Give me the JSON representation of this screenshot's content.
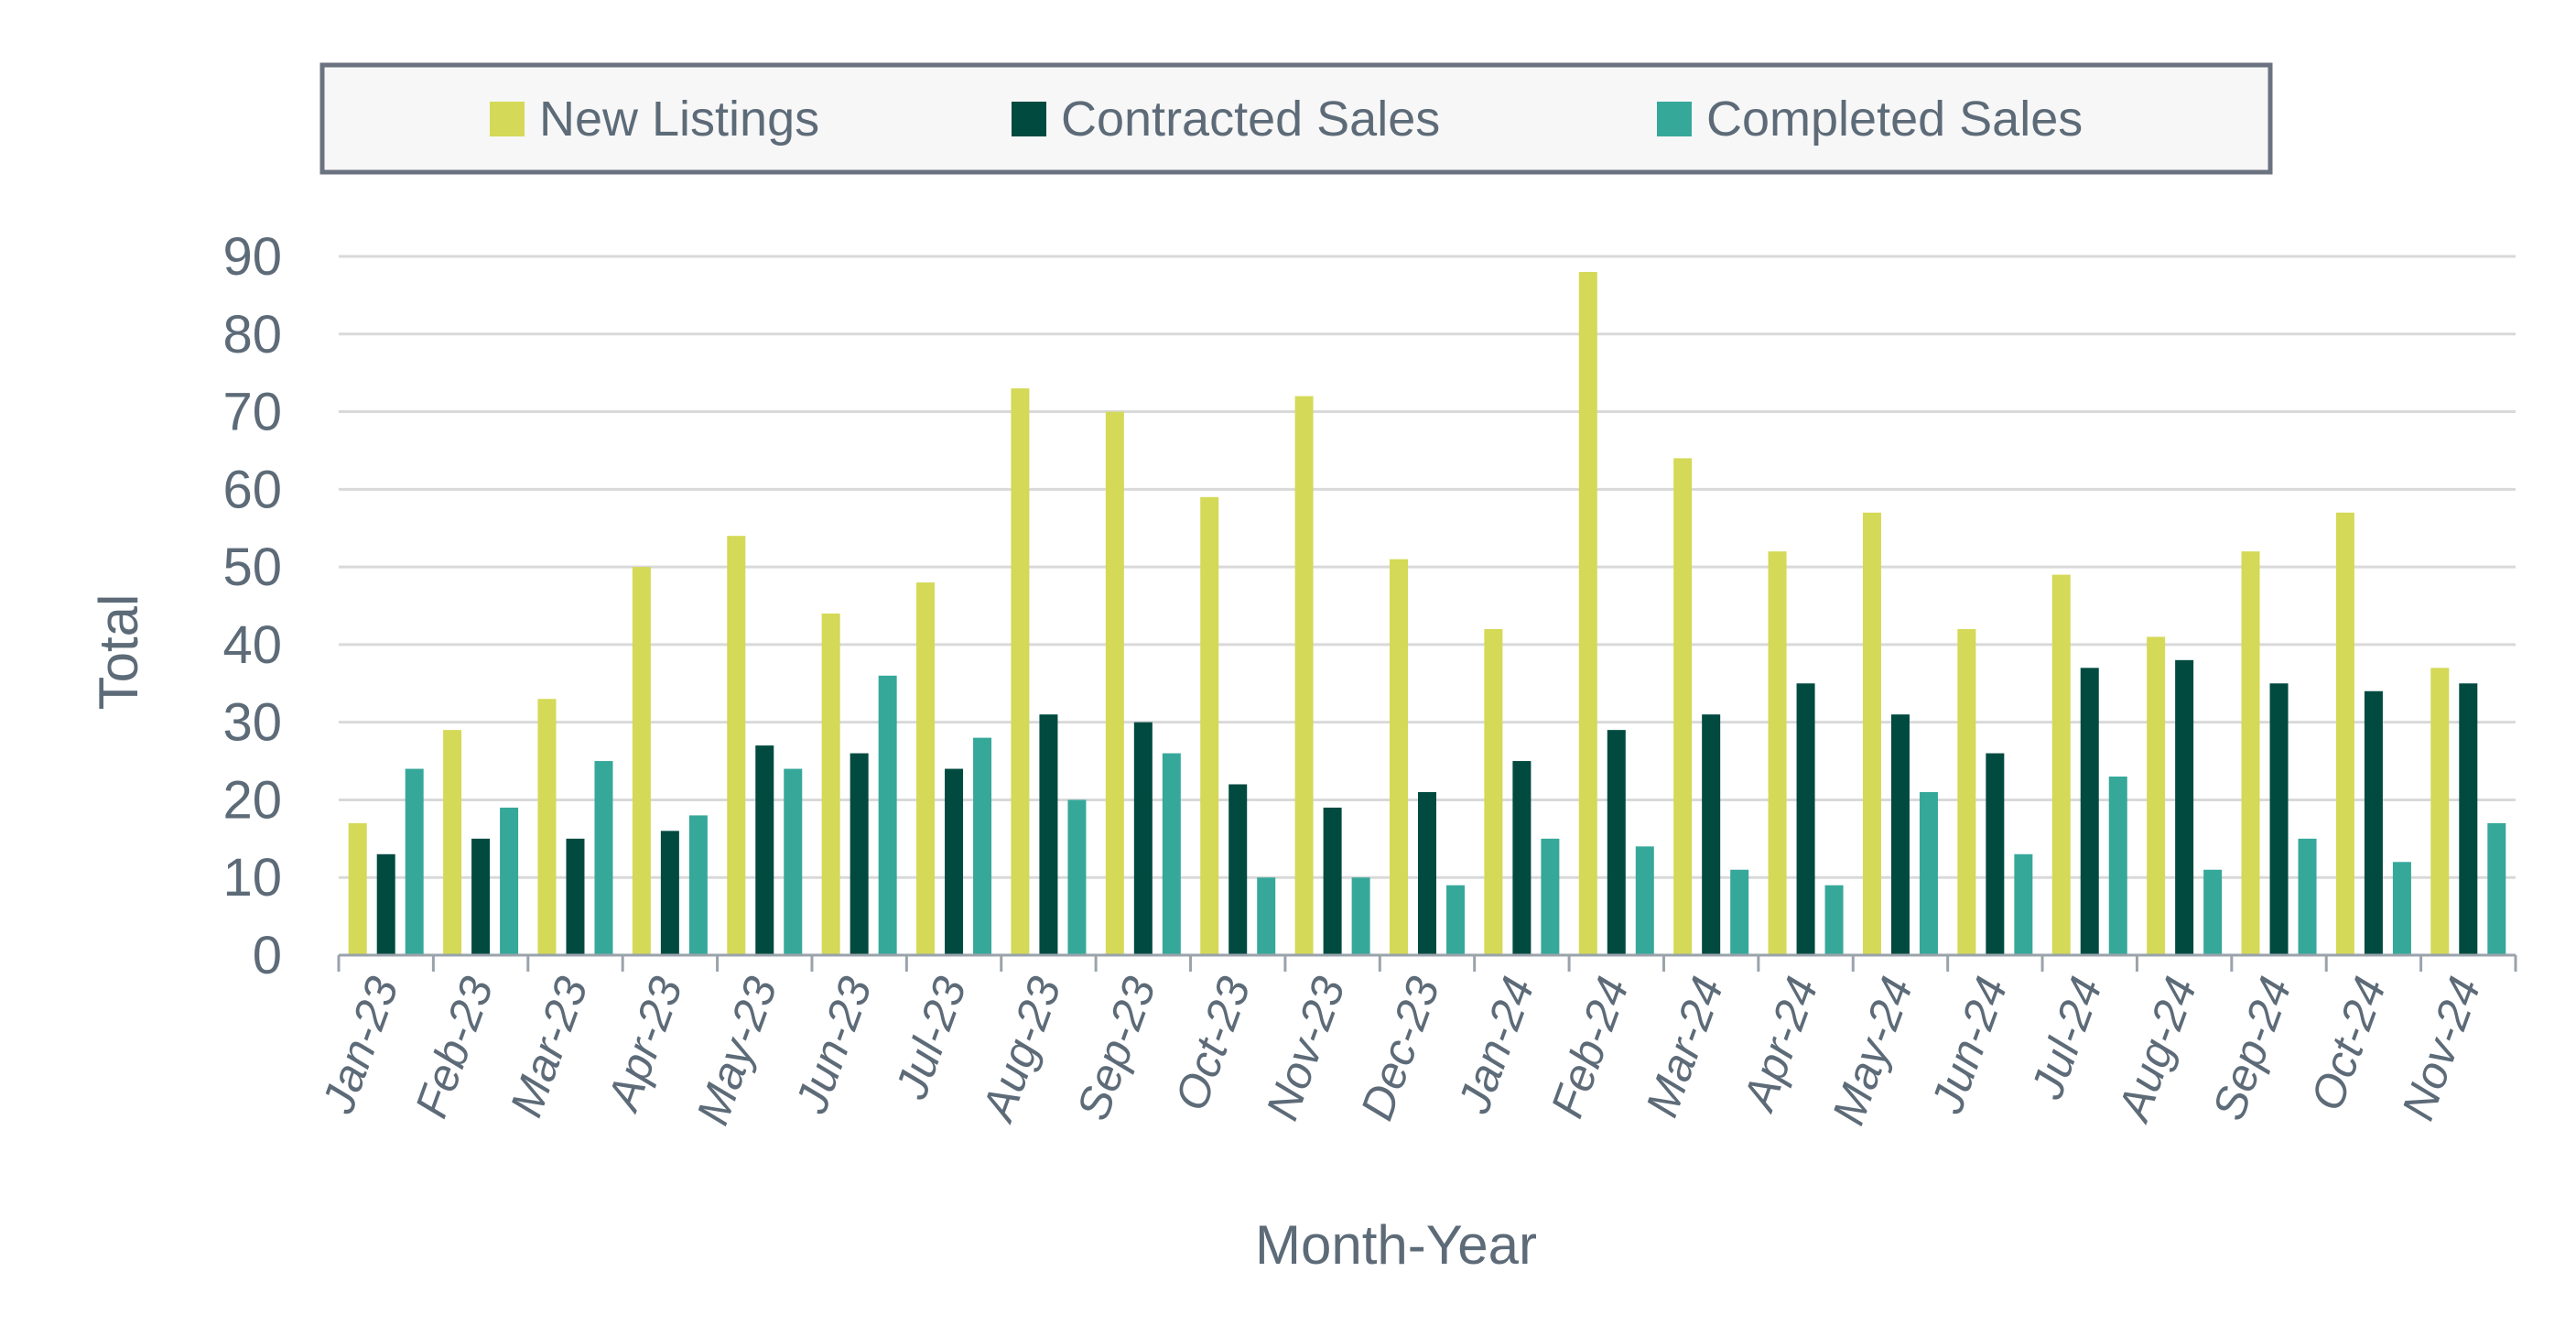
{
  "chart_data": {
    "type": "bar",
    "title": "",
    "xlabel": "Month-Year",
    "ylabel": "Total",
    "ylim": [
      0,
      90
    ],
    "yticks": [
      0,
      10,
      20,
      30,
      40,
      50,
      60,
      70,
      80,
      90
    ],
    "grid": true,
    "legend_position": "top",
    "categories": [
      "Jan-23",
      "Feb-23",
      "Mar-23",
      "Apr-23",
      "May-23",
      "Jun-23",
      "Jul-23",
      "Aug-23",
      "Sep-23",
      "Oct-23",
      "Nov-23",
      "Dec-23",
      "Jan-24",
      "Feb-24",
      "Mar-24",
      "Apr-24",
      "May-24",
      "Jun-24",
      "Jul-24",
      "Aug-24",
      "Sep-24",
      "Oct-24",
      "Nov-24"
    ],
    "series": [
      {
        "name": "New Listings",
        "color": "#d4d957",
        "values": [
          17,
          29,
          33,
          50,
          54,
          44,
          48,
          73,
          70,
          59,
          72,
          51,
          42,
          88,
          64,
          52,
          57,
          42,
          49,
          41,
          52,
          57,
          37
        ]
      },
      {
        "name": "Contracted Sales",
        "color": "#004a40",
        "values": [
          13,
          15,
          15,
          16,
          27,
          26,
          24,
          31,
          30,
          22,
          19,
          21,
          25,
          29,
          31,
          35,
          31,
          26,
          37,
          38,
          35,
          34,
          35
        ]
      },
      {
        "name": "Completed Sales",
        "color": "#36a89a",
        "values": [
          24,
          19,
          25,
          18,
          24,
          36,
          28,
          20,
          26,
          10,
          10,
          9,
          15,
          14,
          11,
          9,
          21,
          13,
          23,
          11,
          15,
          12,
          17
        ]
      }
    ]
  }
}
